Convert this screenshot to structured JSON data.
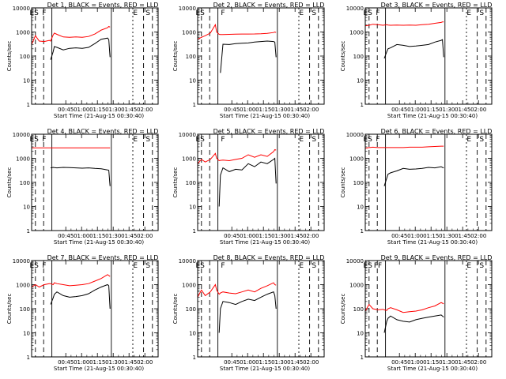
{
  "chart_data": [
    {
      "type": "line",
      "title": "Det 1, BLACK = Events, RED = LLD",
      "xlabel": "Start Time (21-Aug-15 00:30:40)",
      "ylabel": "Counts/sec",
      "yscale": "log",
      "ylim": [
        1,
        10000
      ],
      "xlim_minutes": [
        0,
        100
      ],
      "xticks": [
        "00:45",
        "01:00",
        "01:15",
        "01:30",
        "01:45",
        "02:00"
      ],
      "yticks": [
        "1",
        "10",
        "100",
        "1000",
        "10000"
      ],
      "markers": [
        {
          "label": "ES",
          "x": 2
        },
        {
          "label": "F",
          "x": 10
        },
        {
          "label": "E",
          "x": 82
        },
        {
          "label": "S",
          "x": 92
        }
      ],
      "x": [
        0,
        3,
        6,
        10,
        14,
        15,
        17,
        18,
        20,
        25,
        30,
        35,
        40,
        45,
        50,
        55,
        60,
        61,
        62,
        64
      ],
      "series": [
        {
          "name": "BLACK = Events",
          "color": "#000000",
          "y": [
            null,
            null,
            null,
            null,
            null,
            70,
            150,
            250,
            230,
            180,
            210,
            220,
            210,
            230,
            330,
            500,
            560,
            480,
            90,
            null
          ]
        },
        {
          "name": "RED = LLD",
          "color": "#ff0000",
          "y": [
            300,
            700,
            420,
            400,
            450,
            420,
            750,
            900,
            800,
            620,
            600,
            620,
            600,
            650,
            820,
            1200,
            1500,
            1700,
            1600,
            null
          ]
        }
      ]
    },
    {
      "type": "line",
      "title": "Det 2, BLACK = Events, RED = LLD",
      "xlabel": "Start Time (21-Aug-15 00:30:40)",
      "ylabel": "Counts/sec",
      "yscale": "log",
      "ylim": [
        1,
        10000
      ],
      "xlim_minutes": [
        0,
        100
      ],
      "xticks": [
        "00:45",
        "01:00",
        "01:15",
        "01:30",
        "01:45",
        "02:00"
      ],
      "yticks": [
        "1",
        "10",
        "100",
        "1000",
        "10000"
      ],
      "markers": [
        {
          "label": "ES",
          "x": 2
        },
        {
          "label": "F",
          "x": 20
        },
        {
          "label": "E",
          "x": 82
        },
        {
          "label": "S",
          "x": 92
        }
      ],
      "x": [
        0,
        3,
        6,
        10,
        14,
        15,
        17,
        18,
        20,
        25,
        30,
        35,
        40,
        45,
        50,
        55,
        60,
        61,
        62,
        64
      ],
      "series": [
        {
          "name": "BLACK = Events",
          "color": "#000000",
          "y": [
            null,
            null,
            null,
            null,
            null,
            null,
            null,
            20,
            310,
            300,
            330,
            340,
            350,
            380,
            400,
            420,
            400,
            380,
            90,
            null
          ]
        },
        {
          "name": "RED = LLD",
          "color": "#ff0000",
          "y": [
            500,
            600,
            700,
            900,
            2000,
            1000,
            800,
            780,
            780,
            800,
            810,
            820,
            820,
            830,
            850,
            880,
            950,
            1000,
            950,
            null
          ]
        }
      ]
    },
    {
      "type": "line",
      "title": "Det 3, BLACK = Events, RED = LLD",
      "xlabel": "Start Time (21-Aug-15 00:30:40)",
      "ylabel": "Counts/sec",
      "yscale": "log",
      "ylim": [
        1,
        10000
      ],
      "xlim_minutes": [
        0,
        100
      ],
      "xticks": [
        "00:45",
        "01:00",
        "01:15",
        "01:30",
        "01:45",
        "02:00"
      ],
      "yticks": [
        "1",
        "10",
        "100",
        "1000",
        "10000"
      ],
      "markers": [
        {
          "label": "ES",
          "x": 2
        },
        {
          "label": "F",
          "x": 10
        },
        {
          "label": "E",
          "x": 82
        },
        {
          "label": "S",
          "x": 92
        }
      ],
      "x": [
        0,
        3,
        6,
        10,
        14,
        15,
        17,
        18,
        20,
        25,
        30,
        35,
        40,
        45,
        50,
        55,
        60,
        61,
        62,
        64
      ],
      "series": [
        {
          "name": "BLACK = Events",
          "color": "#000000",
          "y": [
            null,
            null,
            null,
            null,
            null,
            80,
            150,
            200,
            220,
            300,
            280,
            250,
            260,
            280,
            300,
            380,
            450,
            480,
            90,
            null
          ]
        },
        {
          "name": "RED = LLD",
          "color": "#ff0000",
          "y": [
            1800,
            1900,
            2100,
            2000,
            1900,
            1950,
            2000,
            1950,
            1900,
            1950,
            1900,
            1950,
            1900,
            2000,
            2100,
            2300,
            2500,
            2600,
            2600,
            null
          ]
        }
      ]
    },
    {
      "type": "line",
      "title": "Det 4, BLACK = Events, RED = LLD",
      "xlabel": "Start Time (21-Aug-15 00:30:40)",
      "ylabel": "Counts/sec",
      "yscale": "log",
      "ylim": [
        1,
        10000
      ],
      "xlim_minutes": [
        0,
        100
      ],
      "xticks": [
        "00:45",
        "01:00",
        "01:15",
        "01:30",
        "01:45",
        "02:00"
      ],
      "yticks": [
        "1",
        "10",
        "100",
        "1000",
        "10000"
      ],
      "markers": [
        {
          "label": "ES",
          "x": 2
        },
        {
          "label": "F",
          "x": 10
        },
        {
          "label": "E",
          "x": 82
        },
        {
          "label": "S",
          "x": 92
        }
      ],
      "x": [
        0,
        3,
        6,
        10,
        14,
        15,
        17,
        18,
        20,
        25,
        30,
        35,
        40,
        45,
        50,
        55,
        60,
        61,
        62,
        64
      ],
      "series": [
        {
          "name": "BLACK = Events",
          "color": "#000000",
          "y": [
            null,
            null,
            null,
            null,
            null,
            400,
            420,
            410,
            400,
            420,
            410,
            400,
            390,
            400,
            380,
            370,
            330,
            320,
            70,
            null
          ]
        },
        {
          "name": "RED = LLD",
          "color": "#ff0000",
          "y": [
            2700,
            2700,
            2700,
            2700,
            2700,
            2700,
            2700,
            2700,
            2700,
            2700,
            2700,
            2700,
            2700,
            2700,
            2700,
            2700,
            2700,
            2700,
            2700,
            null
          ]
        }
      ]
    },
    {
      "type": "line",
      "title": "Det 5, BLACK = Events, RED = LLD",
      "xlabel": "Start Time (21-Aug-15 00:30:40)",
      "ylabel": "Counts/sec",
      "yscale": "log",
      "ylim": [
        1,
        10000
      ],
      "xlim_minutes": [
        0,
        100
      ],
      "xticks": [
        "00:45",
        "01:00",
        "01:15",
        "01:30",
        "01:45",
        "02:00"
      ],
      "yticks": [
        "1",
        "10",
        "100",
        "1000",
        "10000"
      ],
      "markers": [
        {
          "label": "ES",
          "x": 2
        },
        {
          "label": "F",
          "x": 20
        },
        {
          "label": "E",
          "x": 82
        },
        {
          "label": "S",
          "x": 92
        }
      ],
      "x": [
        0,
        3,
        6,
        10,
        14,
        15,
        17,
        18,
        20,
        25,
        30,
        35,
        40,
        45,
        50,
        55,
        60,
        61,
        62,
        64
      ],
      "series": [
        {
          "name": "BLACK = Events",
          "color": "#000000",
          "y": [
            null,
            null,
            null,
            null,
            null,
            null,
            10,
            200,
            400,
            280,
            350,
            330,
            600,
            450,
            700,
            600,
            900,
            1000,
            90,
            null
          ]
        },
        {
          "name": "RED = LLD",
          "color": "#ff0000",
          "y": [
            600,
            900,
            700,
            900,
            1600,
            1000,
            800,
            820,
            850,
            800,
            900,
            1000,
            1400,
            1100,
            1400,
            1200,
            1900,
            2300,
            2200,
            null
          ]
        }
      ]
    },
    {
      "type": "line",
      "title": "Det 6, BLACK = Events, RED = LLD",
      "xlabel": "Start Time (21-Aug-15 00:30:40)",
      "ylabel": "Counts/sec",
      "yscale": "log",
      "ylim": [
        1,
        10000
      ],
      "xlim_minutes": [
        0,
        100
      ],
      "xticks": [
        "00:45",
        "01:00",
        "01:15",
        "01:30",
        "01:45",
        "02:00"
      ],
      "yticks": [
        "1",
        "10",
        "100",
        "1000",
        "10000"
      ],
      "markers": [
        {
          "label": "ES",
          "x": 2
        },
        {
          "label": "F",
          "x": 10
        },
        {
          "label": "E",
          "x": 82
        },
        {
          "label": "S",
          "x": 92
        }
      ],
      "x": [
        0,
        3,
        6,
        10,
        14,
        15,
        17,
        18,
        20,
        25,
        30,
        35,
        40,
        45,
        50,
        55,
        60,
        61,
        62,
        64
      ],
      "series": [
        {
          "name": "BLACK = Events",
          "color": "#000000",
          "y": [
            null,
            null,
            null,
            null,
            null,
            70,
            150,
            220,
            250,
            300,
            380,
            350,
            360,
            380,
            420,
            400,
            450,
            420,
            400,
            null
          ]
        },
        {
          "name": "RED = LLD",
          "color": "#ff0000",
          "y": [
            2600,
            2800,
            2900,
            2800,
            2800,
            2800,
            2800,
            2800,
            2800,
            2800,
            2800,
            2900,
            2900,
            2900,
            3000,
            3100,
            3200,
            3200,
            3200,
            null
          ]
        }
      ]
    },
    {
      "type": "line",
      "title": "Det 7, BLACK = Events, RED = LLD",
      "xlabel": "Start Time (21-Aug-15 00:30:40)",
      "ylabel": "Counts/sec",
      "yscale": "log",
      "ylim": [
        1,
        10000
      ],
      "xlim_minutes": [
        0,
        100
      ],
      "xticks": [
        "00:45",
        "01:00",
        "01:15",
        "01:30",
        "01:45",
        "02:00"
      ],
      "yticks": [
        "1",
        "10",
        "100",
        "1000",
        "10000"
      ],
      "markers": [
        {
          "label": "ES",
          "x": 2
        },
        {
          "label": "F",
          "x": 10
        },
        {
          "label": "E",
          "x": 82
        },
        {
          "label": "S",
          "x": 92
        }
      ],
      "x": [
        0,
        3,
        6,
        10,
        14,
        15,
        17,
        18,
        20,
        25,
        30,
        35,
        40,
        45,
        50,
        55,
        60,
        61,
        62,
        64
      ],
      "series": [
        {
          "name": "BLACK = Events",
          "color": "#000000",
          "y": [
            null,
            null,
            null,
            null,
            null,
            150,
            280,
            400,
            500,
            350,
            300,
            320,
            350,
            420,
            600,
            800,
            1000,
            900,
            100,
            null
          ]
        },
        {
          "name": "RED = LLD",
          "color": "#ff0000",
          "y": [
            800,
            1000,
            800,
            1000,
            1100,
            1100,
            1000,
            1200,
            1100,
            1000,
            900,
            950,
            1000,
            1100,
            1400,
            1800,
            2600,
            2400,
            2200,
            null
          ]
        }
      ]
    },
    {
      "type": "line",
      "title": "Det 8, BLACK = Events, RED = LLD",
      "xlabel": "Start Time (21-Aug-15 00:30:40)",
      "ylabel": "Counts/sec",
      "yscale": "log",
      "ylim": [
        1,
        10000
      ],
      "xlim_minutes": [
        0,
        100
      ],
      "xticks": [
        "00:45",
        "01:00",
        "01:15",
        "01:30",
        "01:45",
        "02:00"
      ],
      "yticks": [
        "1",
        "10",
        "100",
        "1000",
        "10000"
      ],
      "markers": [
        {
          "label": "ES",
          "x": 2
        },
        {
          "label": "F",
          "x": 20
        },
        {
          "label": "E",
          "x": 82
        },
        {
          "label": "S",
          "x": 92
        }
      ],
      "x": [
        0,
        3,
        6,
        10,
        14,
        15,
        17,
        18,
        20,
        25,
        30,
        35,
        40,
        45,
        50,
        55,
        60,
        61,
        62,
        64
      ],
      "series": [
        {
          "name": "BLACK = Events",
          "color": "#000000",
          "y": [
            null,
            null,
            null,
            null,
            null,
            null,
            10,
            100,
            200,
            180,
            150,
            200,
            250,
            220,
            300,
            400,
            500,
            350,
            100,
            null
          ]
        },
        {
          "name": "RED = LLD",
          "color": "#ff0000",
          "y": [
            300,
            600,
            350,
            500,
            1000,
            600,
            400,
            450,
            500,
            450,
            420,
            500,
            600,
            500,
            700,
            900,
            1200,
            1000,
            950,
            null
          ]
        }
      ]
    },
    {
      "type": "line",
      "title": "Det 9, BLACK = Events, RED = LLD",
      "xlabel": "Start Time (21-Aug-15 00:30:40)",
      "ylabel": "Counts/sec",
      "yscale": "log",
      "ylim": [
        1,
        10000
      ],
      "xlim_minutes": [
        0,
        100
      ],
      "xticks": [
        "00:45",
        "01:00",
        "01:15",
        "01:30",
        "01:45",
        "02:00"
      ],
      "yticks": [
        "1",
        "10",
        "100",
        "1000",
        "10000"
      ],
      "markers": [
        {
          "label": "ES",
          "x": 2
        },
        {
          "label": "FF",
          "x": 10
        },
        {
          "label": "E",
          "x": 82
        },
        {
          "label": "S",
          "x": 92
        }
      ],
      "x": [
        0,
        3,
        6,
        10,
        14,
        15,
        17,
        18,
        20,
        25,
        30,
        35,
        40,
        45,
        50,
        55,
        60,
        61,
        62,
        64
      ],
      "series": [
        {
          "name": "BLACK = Events",
          "color": "#000000",
          "y": [
            null,
            null,
            null,
            null,
            null,
            10,
            30,
            40,
            50,
            35,
            30,
            28,
            35,
            40,
            45,
            50,
            55,
            50,
            45,
            null
          ]
        },
        {
          "name": "RED = LLD",
          "color": "#ff0000",
          "y": [
            80,
            150,
            100,
            90,
            95,
            90,
            85,
            100,
            110,
            90,
            70,
            75,
            80,
            90,
            110,
            130,
            180,
            170,
            160,
            null
          ]
        }
      ]
    }
  ]
}
